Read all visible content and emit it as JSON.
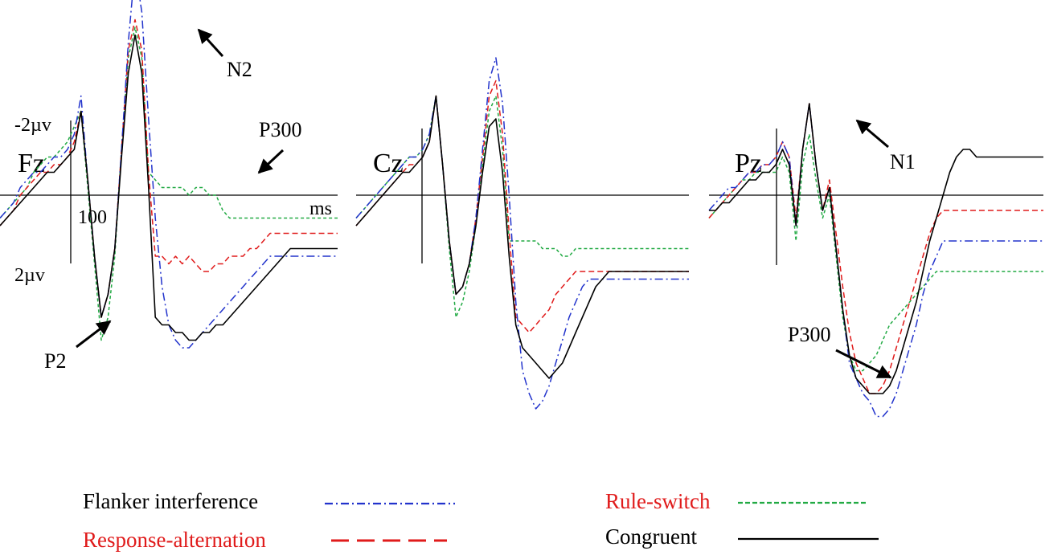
{
  "chart_data": [
    {
      "type": "line",
      "electrode": "Fz",
      "y_top_label": "-2µv",
      "y_bottom_label": "2µv",
      "x_tick_label": "100",
      "x_unit_label": "ms",
      "annotations": [
        {
          "text": "N2",
          "points_to": "N2 peak of Flanker interference"
        },
        {
          "text": "P300",
          "points_to": "P300 of Rule-switch"
        },
        {
          "text": "P2",
          "points_to": "P2 trough"
        }
      ],
      "xlim_ms": [
        -100,
        400
      ],
      "ylim_uv_negative_up": [
        -2.7,
        2.3
      ],
      "x": [
        -100,
        -90,
        -80,
        -70,
        -60,
        -50,
        -40,
        -30,
        -20,
        -10,
        0,
        10,
        20,
        30,
        40,
        50,
        60,
        70,
        80,
        90,
        100,
        110,
        120,
        130,
        140,
        150,
        160,
        170,
        180,
        190,
        200,
        210,
        220,
        230,
        240,
        250,
        260,
        270,
        280,
        290,
        300,
        310,
        320,
        330,
        340,
        350,
        360,
        370,
        380,
        390,
        400
      ],
      "series": [
        {
          "name": "Congruent",
          "values": [
            0.4,
            0.3,
            0.2,
            0.1,
            0.0,
            -0.1,
            -0.2,
            -0.3,
            -0.3,
            -0.4,
            -0.5,
            -0.6,
            -1.1,
            -0.2,
            0.8,
            1.6,
            1.3,
            0.7,
            -0.5,
            -1.6,
            -2.1,
            -1.6,
            -0.1,
            1.6,
            1.7,
            1.7,
            1.8,
            1.8,
            1.9,
            1.9,
            1.8,
            1.8,
            1.7,
            1.7,
            1.6,
            1.5,
            1.4,
            1.3,
            1.2,
            1.1,
            1.0,
            0.9,
            0.8,
            0.7,
            0.7,
            0.7,
            0.7,
            0.7,
            0.7,
            0.7,
            0.7
          ]
        },
        {
          "name": "Flanker interference",
          "values": [
            0.3,
            0.2,
            0.1,
            -0.1,
            -0.2,
            -0.3,
            -0.3,
            -0.4,
            -0.5,
            -0.5,
            -0.6,
            -0.8,
            -1.3,
            -0.2,
            0.8,
            1.6,
            1.3,
            0.7,
            -0.6,
            -2.0,
            -3.0,
            -2.4,
            -1.0,
            0.3,
            1.2,
            1.7,
            1.9,
            2.0,
            2.0,
            1.9,
            1.8,
            1.7,
            1.6,
            1.5,
            1.4,
            1.3,
            1.2,
            1.1,
            1.0,
            0.9,
            0.8,
            0.8,
            0.8,
            0.8,
            0.8,
            0.8,
            0.8,
            0.8,
            0.8,
            0.8,
            0.8
          ]
        },
        {
          "name": "Response-alternation",
          "values": [
            0.4,
            0.3,
            0.2,
            0.0,
            -0.1,
            -0.2,
            -0.3,
            -0.3,
            -0.4,
            -0.4,
            -0.5,
            -0.7,
            -1.1,
            -0.2,
            0.8,
            1.6,
            1.3,
            0.7,
            -0.6,
            -1.9,
            -2.3,
            -1.9,
            -0.3,
            0.8,
            0.8,
            0.9,
            0.8,
            0.9,
            0.8,
            0.9,
            1.0,
            1.0,
            0.9,
            0.9,
            0.8,
            0.8,
            0.8,
            0.7,
            0.7,
            0.6,
            0.5,
            0.5,
            0.5,
            0.5,
            0.5,
            0.5,
            0.5,
            0.5,
            0.5,
            0.5,
            0.5
          ]
        },
        {
          "name": "Rule-switch",
          "values": [
            0.3,
            0.2,
            0.1,
            0.0,
            -0.1,
            -0.3,
            -0.4,
            -0.5,
            -0.5,
            -0.6,
            -0.7,
            -0.9,
            -1.1,
            -0.1,
            0.9,
            1.9,
            1.6,
            0.8,
            -0.6,
            -1.8,
            -2.2,
            -1.8,
            -0.3,
            -0.2,
            -0.1,
            -0.1,
            -0.1,
            -0.1,
            0.0,
            -0.1,
            -0.1,
            0.0,
            0.0,
            0.2,
            0.3,
            0.3,
            0.3,
            0.3,
            0.3,
            0.3,
            0.3,
            0.3,
            0.3,
            0.3,
            0.3,
            0.3,
            0.3,
            0.3,
            0.3,
            0.3,
            0.3
          ]
        }
      ]
    },
    {
      "type": "line",
      "electrode": "Cz",
      "annotations": [],
      "xlim_ms": [
        -100,
        400
      ],
      "ylim_uv_negative_up": [
        -2.7,
        2.3
      ],
      "x": [
        -100,
        -90,
        -80,
        -70,
        -60,
        -50,
        -40,
        -30,
        -20,
        -10,
        0,
        10,
        20,
        30,
        40,
        50,
        60,
        70,
        80,
        90,
        100,
        110,
        120,
        130,
        140,
        150,
        160,
        170,
        180,
        190,
        200,
        210,
        220,
        230,
        240,
        250,
        260,
        270,
        280,
        290,
        300,
        310,
        320,
        330,
        340,
        350,
        360,
        370,
        380,
        390,
        400
      ],
      "series": [
        {
          "name": "Congruent",
          "values": [
            0.4,
            0.3,
            0.2,
            0.1,
            0.0,
            -0.1,
            -0.2,
            -0.3,
            -0.3,
            -0.4,
            -0.5,
            -0.7,
            -1.3,
            -0.4,
            0.6,
            1.3,
            1.2,
            0.9,
            0.4,
            -0.3,
            -0.9,
            -1.0,
            -0.3,
            0.8,
            1.7,
            2.0,
            2.1,
            2.2,
            2.3,
            2.4,
            2.3,
            2.2,
            2.0,
            1.8,
            1.6,
            1.4,
            1.2,
            1.1,
            1.0,
            1.0,
            1.0,
            1.0,
            1.0,
            1.0,
            1.0,
            1.0,
            1.0,
            1.0,
            1.0,
            1.0,
            1.0
          ]
        },
        {
          "name": "Flanker interference",
          "values": [
            0.3,
            0.2,
            0.1,
            0.0,
            -0.1,
            -0.2,
            -0.3,
            -0.4,
            -0.5,
            -0.5,
            -0.6,
            -0.8,
            -1.3,
            -0.4,
            0.6,
            1.3,
            1.2,
            0.9,
            0.3,
            -0.6,
            -1.5,
            -1.8,
            -1.2,
            0.0,
            1.4,
            2.3,
            2.6,
            2.8,
            2.7,
            2.5,
            2.2,
            1.9,
            1.6,
            1.4,
            1.2,
            1.1,
            1.1,
            1.1,
            1.1,
            1.1,
            1.1,
            1.1,
            1.1,
            1.1,
            1.1,
            1.1,
            1.1,
            1.1,
            1.1,
            1.1,
            1.1
          ]
        },
        {
          "name": "Response-alternation",
          "values": [
            0.4,
            0.3,
            0.2,
            0.1,
            0.0,
            -0.1,
            -0.2,
            -0.3,
            -0.4,
            -0.4,
            -0.5,
            -0.7,
            -1.3,
            -0.4,
            0.6,
            1.3,
            1.2,
            0.9,
            0.3,
            -0.5,
            -1.3,
            -1.5,
            -0.8,
            0.5,
            1.6,
            1.7,
            1.8,
            1.7,
            1.6,
            1.5,
            1.3,
            1.2,
            1.1,
            1.0,
            1.0,
            1.0,
            1.0,
            1.0,
            1.0,
            1.0,
            1.0,
            1.0,
            1.0,
            1.0,
            1.0,
            1.0,
            1.0,
            1.0,
            1.0,
            1.0,
            1.0
          ]
        },
        {
          "name": "Rule-switch",
          "values": [
            0.3,
            0.2,
            0.1,
            0.0,
            -0.1,
            -0.2,
            -0.3,
            -0.4,
            -0.5,
            -0.5,
            -0.6,
            -0.8,
            -1.3,
            -0.4,
            0.7,
            1.6,
            1.4,
            1.0,
            0.4,
            -0.4,
            -1.1,
            -1.3,
            -0.6,
            0.6,
            0.6,
            0.6,
            0.6,
            0.6,
            0.7,
            0.7,
            0.7,
            0.8,
            0.8,
            0.7,
            0.7,
            0.7,
            0.7,
            0.7,
            0.7,
            0.7,
            0.7,
            0.7,
            0.7,
            0.7,
            0.7,
            0.7,
            0.7,
            0.7,
            0.7,
            0.7,
            0.7
          ]
        }
      ]
    },
    {
      "type": "line",
      "electrode": "Pz",
      "annotations": [
        {
          "text": "N1",
          "points_to": "N1 peak"
        },
        {
          "text": "P300",
          "points_to": "P300 trough"
        }
      ],
      "xlim_ms": [
        -100,
        400
      ],
      "ylim_uv_negative_up": [
        -2.7,
        2.3
      ],
      "x": [
        -100,
        -90,
        -80,
        -70,
        -60,
        -50,
        -40,
        -30,
        -20,
        -10,
        0,
        10,
        20,
        30,
        40,
        50,
        60,
        70,
        80,
        90,
        100,
        110,
        120,
        130,
        140,
        150,
        160,
        170,
        180,
        190,
        200,
        210,
        220,
        230,
        240,
        250,
        260,
        270,
        280,
        290,
        300,
        310,
        320,
        330,
        340,
        350,
        360,
        370,
        380,
        390,
        400
      ],
      "series": [
        {
          "name": "Congruent",
          "values": [
            0.2,
            0.2,
            0.1,
            0.1,
            0.0,
            -0.1,
            -0.2,
            -0.2,
            -0.3,
            -0.3,
            -0.4,
            -0.6,
            -0.4,
            0.4,
            -0.6,
            -1.2,
            -0.4,
            0.2,
            -0.1,
            0.7,
            1.5,
            2.1,
            2.4,
            2.5,
            2.6,
            2.6,
            2.6,
            2.5,
            2.3,
            2.0,
            1.7,
            1.4,
            1.0,
            0.6,
            0.3,
            0.0,
            -0.3,
            -0.5,
            -0.6,
            -0.6,
            -0.5,
            -0.5,
            -0.5,
            -0.5,
            -0.5,
            -0.5,
            -0.5,
            -0.5,
            -0.5,
            -0.5,
            -0.5
          ]
        },
        {
          "name": "Flanker interference",
          "values": [
            0.2,
            0.1,
            0.0,
            -0.1,
            -0.1,
            -0.2,
            -0.3,
            -0.3,
            -0.4,
            -0.4,
            -0.5,
            -0.7,
            -0.5,
            0.4,
            -0.6,
            -1.2,
            -0.4,
            0.2,
            -0.1,
            0.7,
            1.5,
            2.2,
            2.4,
            2.6,
            2.7,
            2.9,
            2.9,
            2.8,
            2.6,
            2.3,
            2.0,
            1.7,
            1.3,
            1.0,
            0.8,
            0.6,
            0.6,
            0.6,
            0.6,
            0.6,
            0.6,
            0.6,
            0.6,
            0.6,
            0.6,
            0.6,
            0.6,
            0.6,
            0.6,
            0.6,
            0.6
          ]
        },
        {
          "name": "Response-alternation",
          "values": [
            0.3,
            0.2,
            0.1,
            0.0,
            -0.1,
            -0.2,
            -0.3,
            -0.3,
            -0.4,
            -0.4,
            -0.5,
            -0.7,
            -0.5,
            0.3,
            -0.6,
            -1.2,
            -0.4,
            0.2,
            -0.2,
            0.5,
            1.2,
            1.8,
            2.2,
            2.4,
            2.6,
            2.6,
            2.5,
            2.3,
            2.0,
            1.7,
            1.4,
            1.1,
            0.8,
            0.5,
            0.3,
            0.2,
            0.2,
            0.2,
            0.2,
            0.2,
            0.2,
            0.2,
            0.2,
            0.2,
            0.2,
            0.2,
            0.2,
            0.2,
            0.2,
            0.2,
            0.2
          ]
        },
        {
          "name": "Rule-switch",
          "values": [
            0.3,
            0.2,
            0.1,
            0.0,
            -0.1,
            -0.2,
            -0.2,
            -0.3,
            -0.3,
            -0.3,
            -0.3,
            -0.5,
            -0.3,
            0.6,
            -0.4,
            -0.8,
            -0.2,
            0.3,
            0.0,
            0.8,
            1.6,
            2.1,
            2.3,
            2.3,
            2.2,
            2.1,
            1.9,
            1.7,
            1.6,
            1.5,
            1.4,
            1.3,
            1.2,
            1.1,
            1.0,
            1.0,
            1.0,
            1.0,
            1.0,
            1.0,
            1.0,
            1.0,
            1.0,
            1.0,
            1.0,
            1.0,
            1.0,
            1.0,
            1.0,
            1.0,
            1.0
          ]
        }
      ]
    }
  ],
  "legend": [
    {
      "name": "Flanker interference",
      "text_color": "#000000",
      "line_color": "#2233cc",
      "dash": "dashdot"
    },
    {
      "name": "Response-alternation",
      "text_color": "#e01b1b",
      "line_color": "#e01b1b",
      "dash": "dashed"
    },
    {
      "name": "Rule-switch",
      "text_color": "#e01b1b",
      "line_color": "#22aa44",
      "dash": "dotted"
    },
    {
      "name": "Congruent",
      "text_color": "#000000",
      "line_color": "#000000",
      "dash": "solid"
    }
  ],
  "colors": {
    "Flanker interference": "#2233cc",
    "Response-alternation": "#e01b1b",
    "Rule-switch": "#22aa44",
    "Congruent": "#000000"
  }
}
